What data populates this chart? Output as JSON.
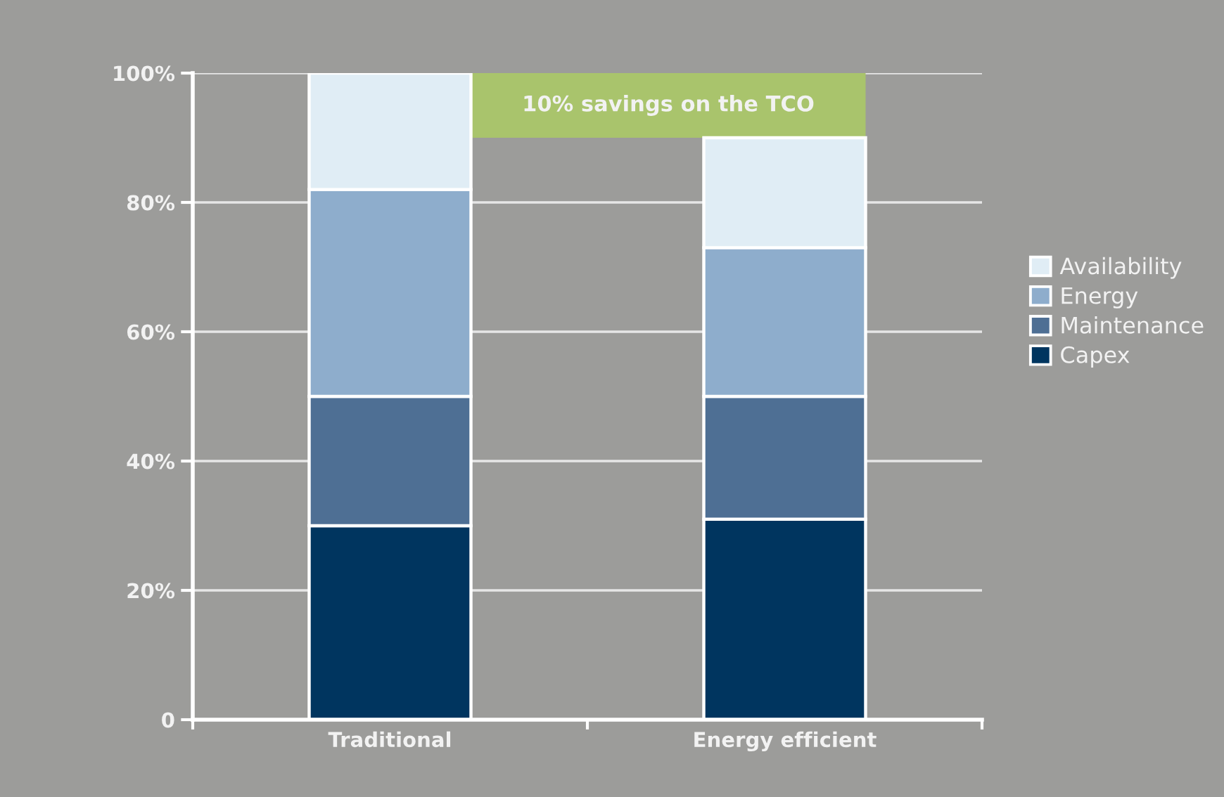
{
  "chart_data": {
    "type": "bar",
    "categories": [
      "Traditional",
      "Energy efficient"
    ],
    "stacked": true,
    "series": [
      {
        "name": "Capex",
        "color": "#00355f",
        "values": [
          30,
          31
        ]
      },
      {
        "name": "Maintenance",
        "color": "#4e6f94",
        "values": [
          20,
          19
        ]
      },
      {
        "name": "Energy",
        "color": "#8eadcc",
        "values": [
          32,
          23
        ]
      },
      {
        "name": "Availability",
        "color": "#e0edf5",
        "values": [
          18,
          17
        ]
      }
    ],
    "ylim": [
      0,
      100
    ],
    "yticks": [
      0,
      {
        "value": 20,
        "label": "20%"
      },
      {
        "value": 40,
        "label": "40%"
      },
      {
        "value": 60,
        "label": "60%"
      },
      {
        "value": 80,
        "label": "80%"
      },
      {
        "value": 100,
        "label": "100%"
      }
    ],
    "grid": "y",
    "legend": "right",
    "bands": [
      {
        "axis": "y",
        "from": 90,
        "to": 100,
        "label": "10% savings on the TCO",
        "color": "#a9c46c"
      }
    ]
  }
}
